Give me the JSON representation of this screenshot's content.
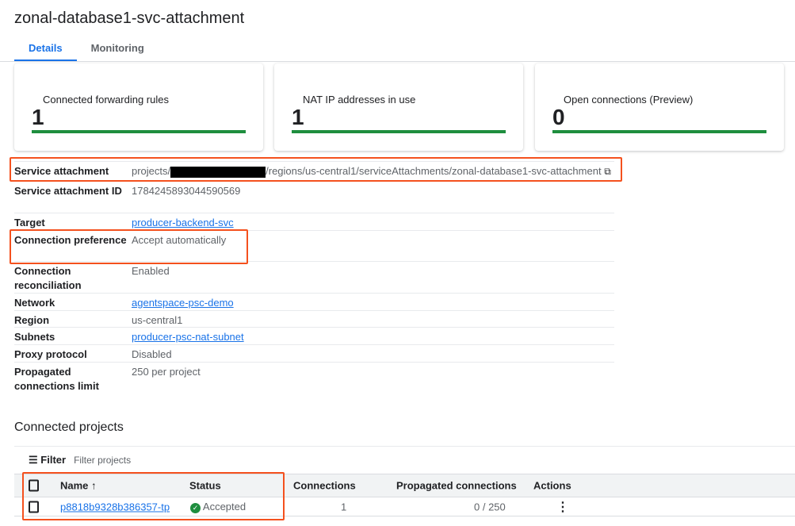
{
  "title": "zonal-database1-svc-attachment",
  "tabs": [
    {
      "label": "Details",
      "active": true
    },
    {
      "label": "Monitoring"
    }
  ],
  "cards": [
    {
      "label": "Connected forwarding rules",
      "value": "1"
    },
    {
      "label": "NAT IP addresses in use",
      "value": "1"
    },
    {
      "label": "Open connections (Preview)",
      "value": "0"
    }
  ],
  "details": {
    "service_attachment": {
      "label": "Service attachment",
      "prefix": "projects/",
      "suffix": "/regions/us-central1/serviceAttachments/zonal-database1-svc-attachment"
    },
    "id": {
      "label": "Service attachment ID",
      "value": "1784245893044590569"
    },
    "target": {
      "label": "Target",
      "value": "producer-backend-svc"
    },
    "pref": {
      "label": "Connection preference",
      "value": "Accept automatically"
    },
    "recon": {
      "label": "Connection reconciliation",
      "value": "Enabled"
    },
    "network": {
      "label": "Network",
      "value": "agentspace-psc-demo"
    },
    "region": {
      "label": "Region",
      "value": "us-central1"
    },
    "subnets": {
      "label": "Subnets",
      "value": "producer-psc-nat-subnet"
    },
    "proxy": {
      "label": "Proxy protocol",
      "value": "Disabled"
    },
    "limit": {
      "label": "Propagated connections limit",
      "value": "250 per project"
    }
  },
  "connected": {
    "heading": "Connected projects",
    "filter_label": "Filter",
    "filter_placeholder": "Filter projects",
    "columns": [
      "Name",
      "Status",
      "Connections",
      "Propagated connections",
      "Actions"
    ],
    "rows": [
      {
        "name": "p8818b9328b386357-tp",
        "status": "Accepted",
        "connections": "1",
        "propagated": "0 / 250"
      }
    ]
  },
  "colors": {
    "accent": "#1a73e8",
    "success": "#1e8e3e",
    "highlight": "#f4511e"
  }
}
